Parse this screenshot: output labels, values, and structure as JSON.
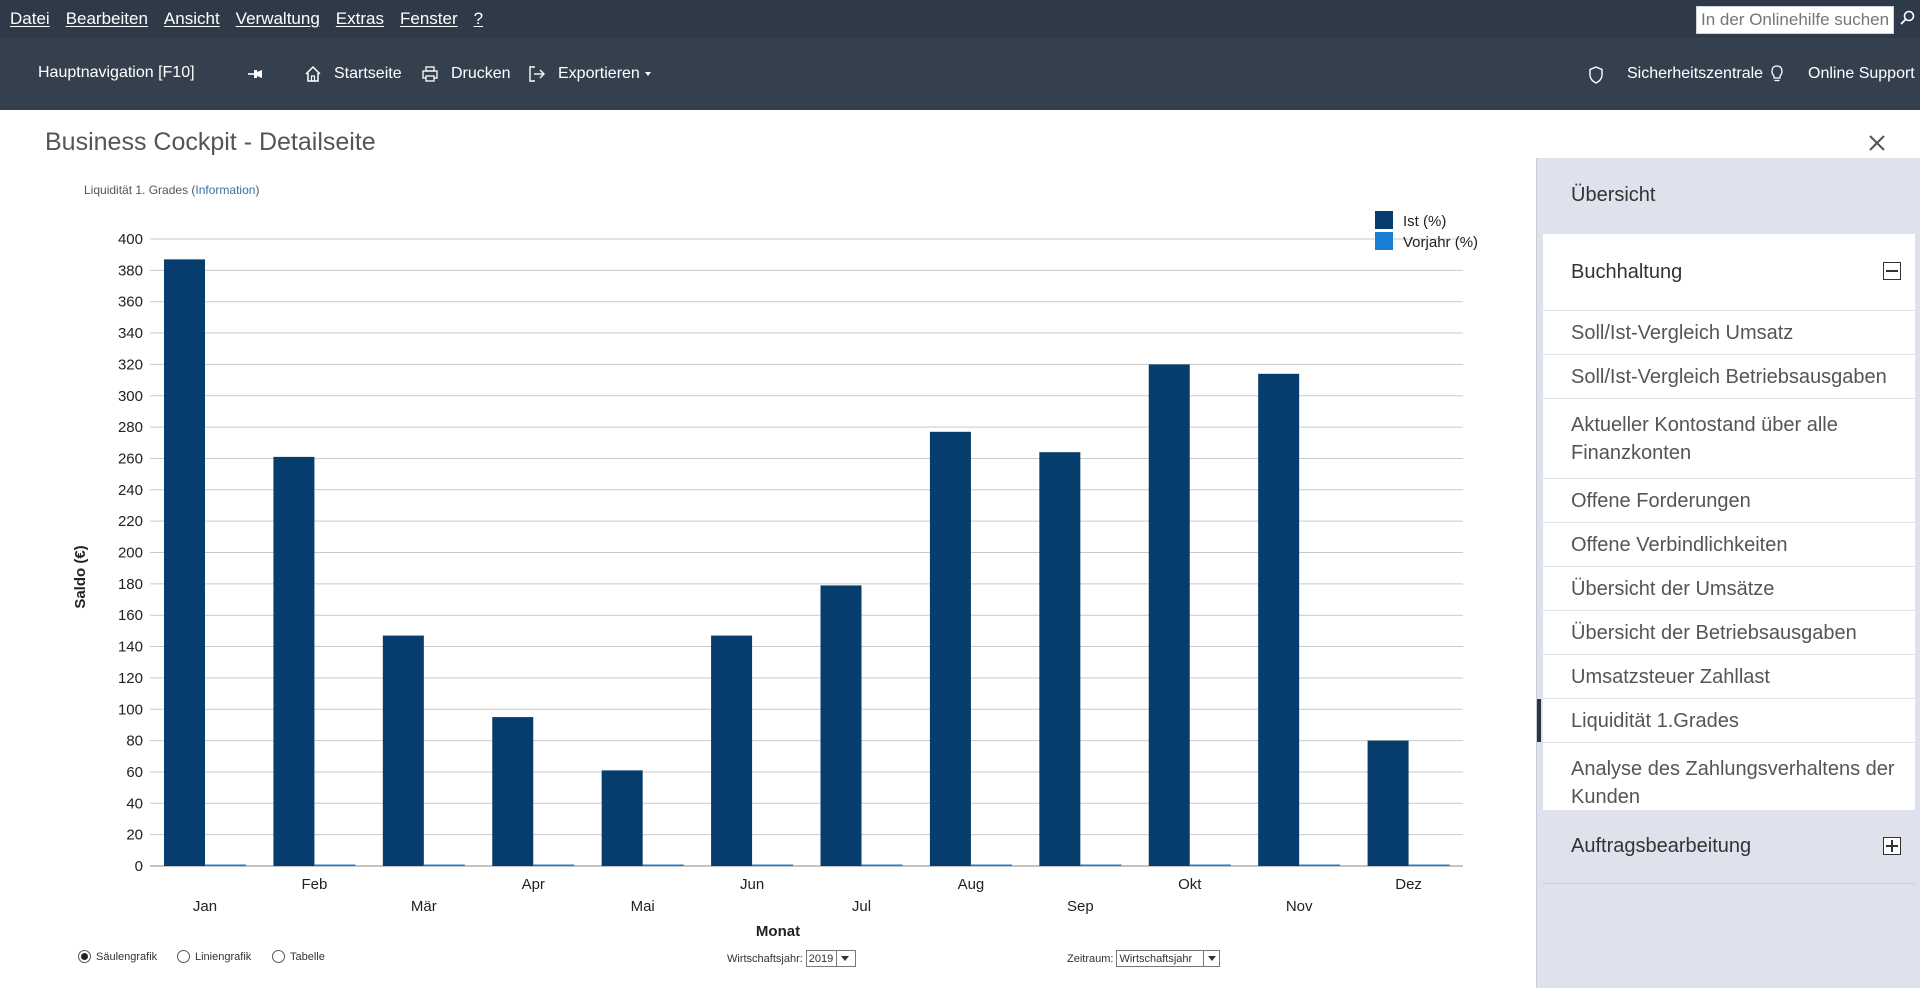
{
  "menu": {
    "items": [
      "Datei",
      "Bearbeiten",
      "Ansicht",
      "Verwaltung",
      "Extras",
      "Fenster",
      "?"
    ],
    "search_placeholder": "In der Onlinehilfe suchen"
  },
  "toolbar": {
    "nav_label": "Hauptnavigation [F10]",
    "home_label": "Startseite",
    "print_label": "Drucken",
    "export_label": "Exportieren",
    "security_label": "Sicherheitszentrale",
    "support_label": "Online Support"
  },
  "page": {
    "title": "Business Cockpit - Detailseite",
    "caption_text": "Liquidität 1. Grades (",
    "caption_link": "Information",
    "caption_end": ")"
  },
  "chart_data": {
    "type": "bar",
    "categories": [
      "Jan",
      "Feb",
      "Mär",
      "Apr",
      "Mai",
      "Jun",
      "Jul",
      "Aug",
      "Sep",
      "Okt",
      "Nov",
      "Dez"
    ],
    "series": [
      {
        "name": "Ist (%)",
        "color": "#063d6c",
        "values": [
          387,
          261,
          147,
          95,
          61,
          147,
          179,
          277,
          264,
          320,
          314,
          80
        ]
      },
      {
        "name": "Vorjahr (%)",
        "color": "#1a7fd4",
        "values": [
          0,
          0,
          0,
          0,
          0,
          0,
          0,
          0,
          0,
          0,
          0,
          0
        ]
      }
    ],
    "xlabel": "Monat",
    "ylabel": "Saldo (€)",
    "ylim": [
      0,
      400
    ],
    "yticks": [
      0,
      20,
      40,
      60,
      80,
      100,
      120,
      140,
      160,
      180,
      200,
      220,
      240,
      260,
      280,
      300,
      320,
      340,
      360,
      380,
      400
    ],
    "grid": true,
    "legend": "top-right"
  },
  "controls": {
    "chart_types": [
      "Säulengrafik",
      "Liniengrafik",
      "Tabelle"
    ],
    "selected_chart_type": "Säulengrafik",
    "year_label": "Wirtschaftsjahr:",
    "year_value": "2019",
    "period_label": "Zeitraum:",
    "period_value": "Wirtschaftsjahr"
  },
  "sidebar": {
    "overview": "Übersicht",
    "accounting": "Buchhaltung",
    "items": [
      "Soll/Ist-Vergleich Umsatz",
      "Soll/Ist-Vergleich Betriebsausgaben",
      "Aktueller Kontostand über alle Finanzkonten",
      "Offene Forderungen",
      "Offene Verbindlichkeiten",
      "Übersicht der Umsätze",
      "Übersicht der Betriebsausgaben",
      "Umsatzsteuer Zahllast",
      "Liquidität 1.Grades",
      "Analyse des Zahlungsverhaltens der Kunden"
    ],
    "active_item": "Liquidität 1.Grades",
    "orders": "Auftragsbearbeitung"
  }
}
